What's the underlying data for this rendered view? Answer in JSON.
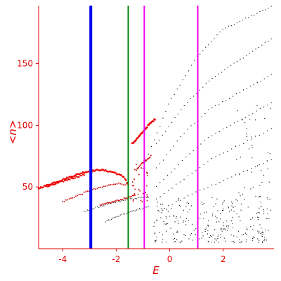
{
  "chart_data": {
    "type": "scatter",
    "xlabel": "E",
    "ylabel": "<n>",
    "xlim": [
      -4.9,
      3.9
    ],
    "ylim": [
      0,
      197
    ],
    "x_ticks": [
      -4,
      -2,
      0,
      2
    ],
    "x_tick_labels": [
      "-4",
      "-2",
      "0",
      "2"
    ],
    "y_ticks": [
      50,
      100,
      150
    ],
    "y_tick_labels": [
      "50",
      "100",
      "150"
    ],
    "vertical_lines": [
      {
        "x": -2.95,
        "color": "#0000ee"
      },
      {
        "x": -1.55,
        "color": "#008000"
      },
      {
        "x": -0.95,
        "color": "#ee00ee"
      },
      {
        "x": 1.05,
        "color": "#ee00ee"
      }
    ],
    "bands": [
      {
        "color": "#000000",
        "size": 1.1,
        "n": 46,
        "points": [
          [
            -1.0,
            65
          ],
          [
            0.0,
            119
          ],
          [
            1.0,
            155
          ],
          [
            2.0,
            178
          ],
          [
            3.8,
            196
          ]
        ]
      },
      {
        "color": "#000000",
        "size": 1.1,
        "n": 38,
        "points": [
          [
            -0.5,
            85
          ],
          [
            0.5,
            115
          ],
          [
            1.5,
            137
          ],
          [
            3.8,
            170
          ]
        ]
      },
      {
        "color": "#000000",
        "size": 1.1,
        "n": 34,
        "points": [
          [
            -0.5,
            65
          ],
          [
            0.5,
            93
          ],
          [
            1.5,
            113
          ],
          [
            3.8,
            141
          ]
        ]
      },
      {
        "color": "#000000",
        "size": 1.1,
        "n": 32,
        "points": [
          [
            -0.5,
            50
          ],
          [
            0.5,
            72
          ],
          [
            1.5,
            91
          ],
          [
            3.8,
            118
          ]
        ]
      },
      {
        "color": "#000000",
        "size": 1.1,
        "n": 30,
        "points": [
          [
            -0.5,
            40
          ],
          [
            0.5,
            56
          ],
          [
            1.5,
            72
          ],
          [
            3.8,
            97
          ]
        ]
      },
      {
        "color": "#000000",
        "size": 1.1,
        "n": 28,
        "points": [
          [
            -0.2,
            33
          ],
          [
            1.0,
            46
          ],
          [
            3.8,
            72
          ]
        ]
      },
      {
        "color": "#000000",
        "size": 1.1,
        "n": 40,
        "points": [
          [
            -3.2,
            30
          ],
          [
            -2.5,
            35
          ],
          [
            -1.5,
            40
          ],
          [
            -0.8,
            42
          ]
        ]
      },
      {
        "color": "#000000",
        "size": 1.1,
        "n": 30,
        "points": [
          [
            -2.4,
            22
          ],
          [
            -1.5,
            30
          ],
          [
            -0.8,
            34
          ]
        ]
      },
      {
        "color": "#cc0000",
        "size": 1.6,
        "n": 40,
        "points": [
          [
            -4.0,
            38
          ],
          [
            -3.0,
            47
          ],
          [
            -2.0,
            53
          ],
          [
            -1.6,
            52
          ]
        ]
      },
      {
        "color": "#cc0000",
        "size": 1.6,
        "n": 30,
        "points": [
          [
            -2.6,
            35
          ],
          [
            -1.8,
            40
          ],
          [
            -1.3,
            43
          ]
        ]
      },
      {
        "color": "#ee0000",
        "size": 2.3,
        "n": 80,
        "points": [
          [
            -4.9,
            49
          ],
          [
            -4.0,
            56
          ],
          [
            -3.2,
            62
          ],
          [
            -2.6,
            64
          ],
          [
            -2.1,
            62
          ],
          [
            -1.7,
            58
          ],
          [
            -1.55,
            52
          ]
        ]
      },
      {
        "color": "#ee0000",
        "size": 2.0,
        "n": 30,
        "points": [
          [
            -4.6,
            50
          ],
          [
            -3.8,
            56
          ],
          [
            -3.2,
            60
          ]
        ]
      },
      {
        "color": "#ee0000",
        "size": 2.4,
        "n": 30,
        "points": [
          [
            -1.4,
            85
          ],
          [
            -1.1,
            92
          ],
          [
            -0.8,
            100
          ],
          [
            -0.55,
            105
          ]
        ]
      },
      {
        "color": "#cc0000",
        "size": 1.6,
        "n": 20,
        "points": [
          [
            -1.25,
            64
          ],
          [
            -1.0,
            70
          ],
          [
            -0.7,
            75
          ]
        ]
      }
    ],
    "scatter_clusters": [
      {
        "color": "#000000",
        "size": 1.1,
        "n": 260,
        "xrange": [
          -0.6,
          3.8
        ],
        "yrange": [
          5,
          42
        ]
      },
      {
        "color": "#000000",
        "size": 1.1,
        "n": 40,
        "xrange": [
          2.5,
          3.8
        ],
        "yrange": [
          40,
          120
        ]
      },
      {
        "color": "#cc0000",
        "size": 1.6,
        "n": 28,
        "xrange": [
          -1.4,
          -0.8
        ],
        "yrange": [
          38,
          70
        ]
      }
    ]
  }
}
